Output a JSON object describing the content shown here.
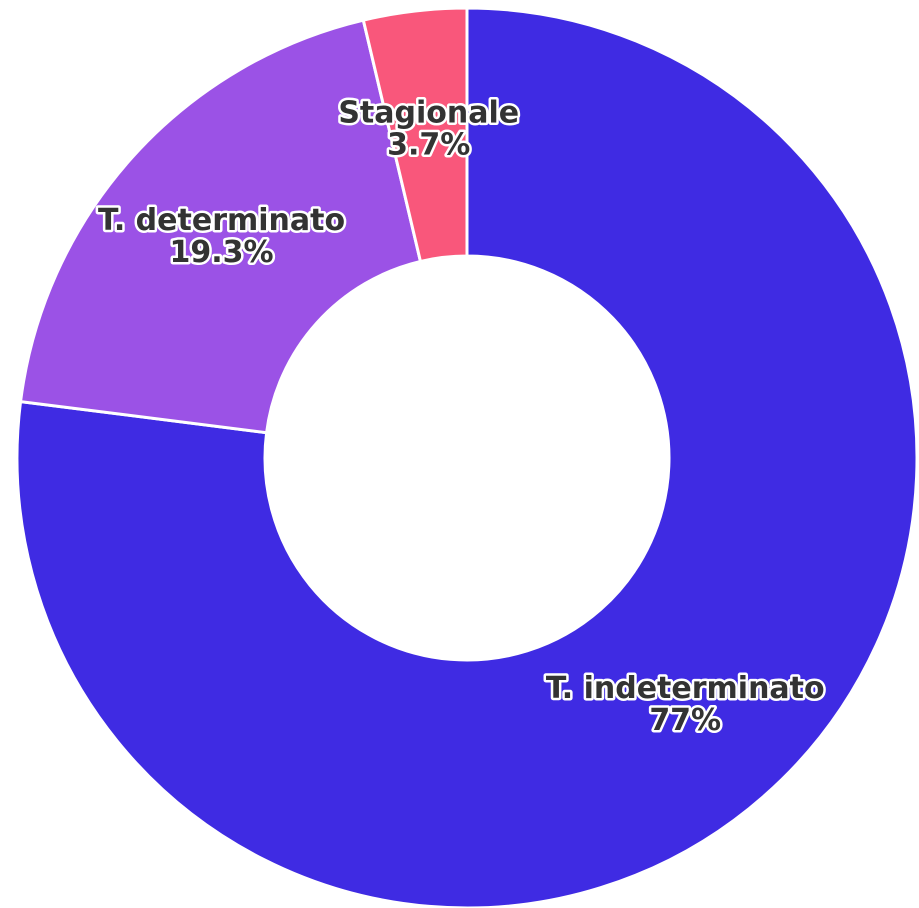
{
  "chart_data": {
    "type": "donut",
    "categories": [
      "T. indeterminato",
      "T. determinato",
      "Stagionale"
    ],
    "values": [
      77,
      19.3,
      3.7
    ],
    "value_labels": [
      "77%",
      "19.3%",
      "3.7%"
    ],
    "colors": [
      "#3f2be3",
      "#9b52e6",
      "#f9577b"
    ]
  }
}
